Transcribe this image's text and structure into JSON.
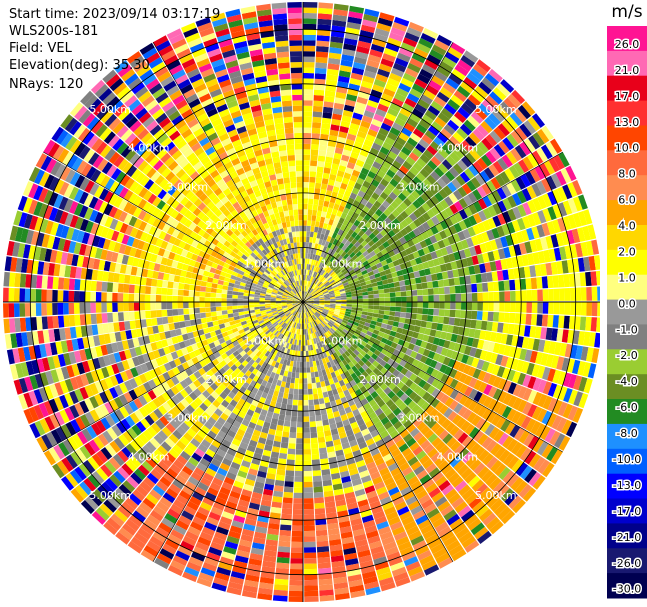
{
  "header": {
    "start_time": "Start time: 2023/09/14 03:17:19",
    "instrument": "WLS200s-181",
    "field": "Field: VEL",
    "elevation": "Elevation(deg): 35.30",
    "nrays": "NRays: 120"
  },
  "chart_data": {
    "type": "heatmap",
    "projection": "polar PPI scan",
    "field": "VEL",
    "n_rays": 120,
    "range_rings_km": [
      1.0,
      2.0,
      3.0,
      4.0,
      5.0
    ],
    "range_ring_labels": [
      "1.00km",
      "2.00km",
      "3.00km",
      "4.00km",
      "5.00km"
    ],
    "max_range_km": 5.5,
    "colorbar": {
      "unit": "m/s",
      "tick_labels": [
        "26.0",
        "21.0",
        "17.0",
        "13.0",
        "10.0",
        "8.0",
        "6.0",
        "4.0",
        "2.0",
        "1.0",
        "0.0",
        "-1.0",
        "-2.0",
        "-4.0",
        "-6.0",
        "-8.0",
        "-10.0",
        "-13.0",
        "-17.0",
        "-21.0",
        "-26.0",
        "-30.0"
      ],
      "band_colors": [
        "#ff1493",
        "#ff69b4",
        "#e8001a",
        "#ff3030",
        "#ff4500",
        "#ff6a3d",
        "#ff8c50",
        "#ffa500",
        "#ffd700",
        "#ffff00",
        "#ffff80",
        "#999999",
        "#808080",
        "#9acd32",
        "#6b8e23",
        "#228b22",
        "#1e90ff",
        "#0060ff",
        "#0000ff",
        "#0000cd",
        "#00008b",
        "#191970",
        "#000050"
      ]
    },
    "sector_pattern": [
      {
        "azimuth_deg": [
          0,
          360
        ],
        "range_km": [
          0,
          0.8
        ],
        "dominant": "yellow/grey mix (~0 to 2 m/s)"
      },
      {
        "azimuth_deg": [
          30,
          150
        ],
        "range_km": [
          0.8,
          3.0
        ],
        "dominant": "green (-2 to -6 m/s)"
      },
      {
        "azimuth_deg": [
          150,
          270
        ],
        "range_km": [
          0.8,
          3.0
        ],
        "dominant": "grey/yellow (0 to 2 m/s)"
      },
      {
        "azimuth_deg": [
          270,
          360
        ],
        "range_km": [
          0.8,
          2.5
        ],
        "dominant": "yellow (2 to 4 m/s)"
      },
      {
        "azimuth_deg": [
          110,
          160
        ],
        "range_km": [
          3.0,
          5.5
        ],
        "dominant": "orange (4 to 6 m/s)"
      },
      {
        "azimuth_deg": [
          160,
          220
        ],
        "range_km": [
          3.5,
          5.5
        ],
        "dominant": "salmon (6 to 8 m/s)"
      },
      {
        "azimuth_deg": [
          0,
          360
        ],
        "range_km": [
          3.5,
          5.5
        ],
        "dominant": "noisy multicolor (unfiltered)"
      }
    ]
  }
}
